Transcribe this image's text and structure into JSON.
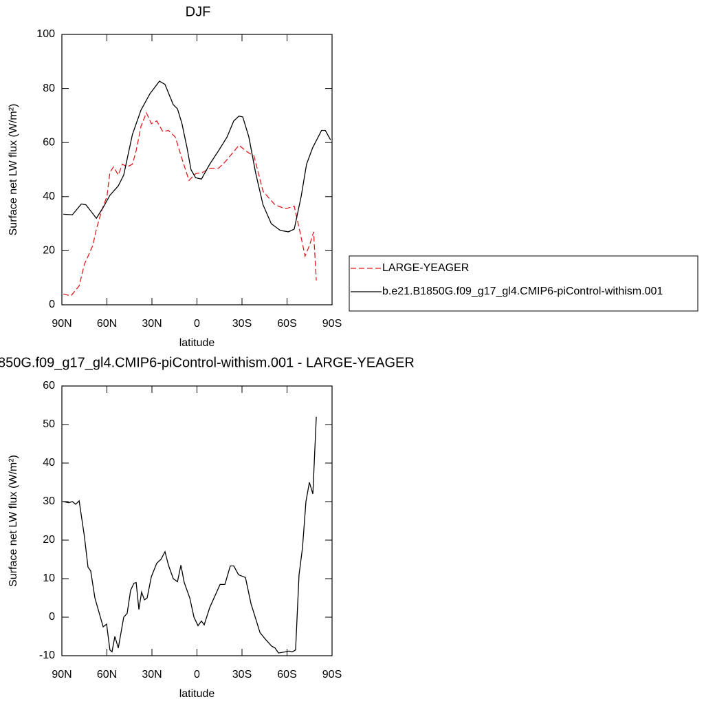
{
  "chart_data": [
    {
      "type": "line",
      "title": "DJF",
      "xlabel": "latitude",
      "ylabel": "Surface net LW flux (W/m²)",
      "xlim": [
        90,
        -90
      ],
      "xticks": [
        {
          "value": 90,
          "label": "90N"
        },
        {
          "value": 60,
          "label": "60N"
        },
        {
          "value": 30,
          "label": "30N"
        },
        0,
        {
          "value": -30,
          "label": "30S"
        },
        {
          "value": -60,
          "label": "60S"
        },
        {
          "value": -90,
          "label": "90S"
        }
      ],
      "ylim": [
        0,
        100
      ],
      "yticks": [
        0,
        20,
        40,
        60,
        80,
        100
      ],
      "legend": "right",
      "series": [
        {
          "name": "LARGE-YEAGER",
          "color": "#e31a1c",
          "linestyle": "dashed",
          "x": [
            89,
            84,
            78.5,
            75,
            71.7,
            69.4,
            67,
            63.4,
            60,
            58,
            55.6,
            52.4,
            49.7,
            46.5,
            43,
            40.5,
            37.3,
            33.7,
            30.4,
            26.8,
            22.7,
            19,
            14.4,
            10,
            5.3,
            0.9,
            -3.9,
            -8.5,
            -14.4,
            -19,
            -23.5,
            -28,
            -33.6,
            -38,
            -44,
            -51.9,
            -58.9,
            -64.8,
            -69.4,
            -72,
            -75,
            -77.7,
            -79.5
          ],
          "values": [
            4,
            3.3,
            7,
            15,
            19,
            22,
            28,
            35,
            40,
            49,
            51,
            48,
            52,
            51,
            52,
            57,
            66,
            71,
            67,
            68,
            64,
            64.5,
            62,
            54,
            46,
            48.5,
            49,
            50.5,
            50.5,
            53,
            56,
            59,
            56.5,
            55,
            42,
            37,
            35.5,
            36.5,
            25,
            18,
            22,
            27,
            9
          ]
        },
        {
          "name": "b.e21.B1850G.f09_g17_gl4.CMIP6-piControl-withism.001",
          "color": "#000000",
          "linestyle": "solid",
          "x": [
            89,
            83,
            77,
            74,
            67,
            62.5,
            58,
            52.4,
            48.8,
            43,
            37.3,
            31.4,
            25,
            21.3,
            15.8,
            13,
            10,
            6.6,
            4,
            0.9,
            -3,
            -8.5,
            -14.4,
            -20,
            -24.5,
            -28,
            -30.5,
            -34.6,
            -39,
            -44,
            -49.5,
            -55.5,
            -61,
            -64.8,
            -69.4,
            -73,
            -77,
            -83,
            -85.5,
            -89
          ],
          "values": [
            33.5,
            33.3,
            37.3,
            37,
            32,
            36,
            40.5,
            44,
            48,
            63,
            72,
            78,
            82.7,
            81.5,
            74,
            72.5,
            67,
            58,
            50,
            47,
            46.5,
            52,
            57,
            62,
            68,
            69.8,
            69.5,
            62,
            49,
            37,
            30,
            27.5,
            27,
            28,
            40,
            52,
            58,
            64.5,
            64.5,
            61
          ]
        }
      ]
    },
    {
      "type": "line",
      "title": "850G.f09_g17_gl4.CMIP6-piControl-withism.001 - LARGE-YEAGER",
      "xlabel": "latitude",
      "ylabel": "Surface net LW flux (W/m²)",
      "xlim": [
        90,
        -90
      ],
      "xticks": [
        {
          "value": 90,
          "label": "90N"
        },
        {
          "value": 60,
          "label": "60N"
        },
        {
          "value": 30,
          "label": "30N"
        },
        0,
        {
          "value": -30,
          "label": "30S"
        },
        {
          "value": -60,
          "label": "60S"
        },
        {
          "value": -90,
          "label": "90S"
        }
      ],
      "ylim": [
        -10,
        60
      ],
      "yticks": [
        -10,
        0,
        10,
        20,
        30,
        40,
        50,
        60
      ],
      "series": [
        {
          "color": "#000000",
          "linestyle": "solid",
          "x": [
            89,
            85.4,
            83,
            80.8,
            78.5,
            75,
            72.6,
            70.8,
            68,
            62.5,
            60.2,
            58,
            56.6,
            54.7,
            52.4,
            48.8,
            46.5,
            44.2,
            42,
            40.5,
            38.7,
            36.9,
            35,
            33.2,
            30.4,
            26.8,
            24,
            21.3,
            19,
            15.8,
            13,
            10.7,
            8.5,
            4.8,
            2,
            -0.7,
            -3,
            -4.8,
            -8.5,
            -10.8,
            -15.4,
            -18.6,
            -22.2,
            -24.5,
            -27.7,
            -32.3,
            -36,
            -42,
            -45.1,
            -49.7,
            -52,
            -54.3,
            -58.9,
            -61.2,
            -63.5,
            -65.7,
            -68,
            -70.3,
            -72.6,
            -74.9,
            -77.2,
            -79.5
          ],
          "values": [
            30,
            29.7,
            30,
            29.3,
            30.2,
            21,
            13,
            12,
            5,
            -2.5,
            -1.8,
            -8.5,
            -9,
            -5,
            -8,
            0,
            1,
            7,
            8.8,
            9,
            2,
            6.5,
            4.5,
            5,
            10.5,
            14,
            15,
            17,
            13.5,
            10,
            9.2,
            13.5,
            9,
            5,
            0,
            -2.2,
            -1,
            -2,
            2.5,
            4.5,
            8.5,
            8.5,
            13.3,
            13.3,
            11,
            10.3,
            3.5,
            -4,
            -5.5,
            -7.5,
            -8,
            -9.3,
            -9,
            -8.8,
            -9,
            -8.5,
            11,
            18,
            30,
            35,
            32,
            52
          ]
        }
      ]
    }
  ]
}
